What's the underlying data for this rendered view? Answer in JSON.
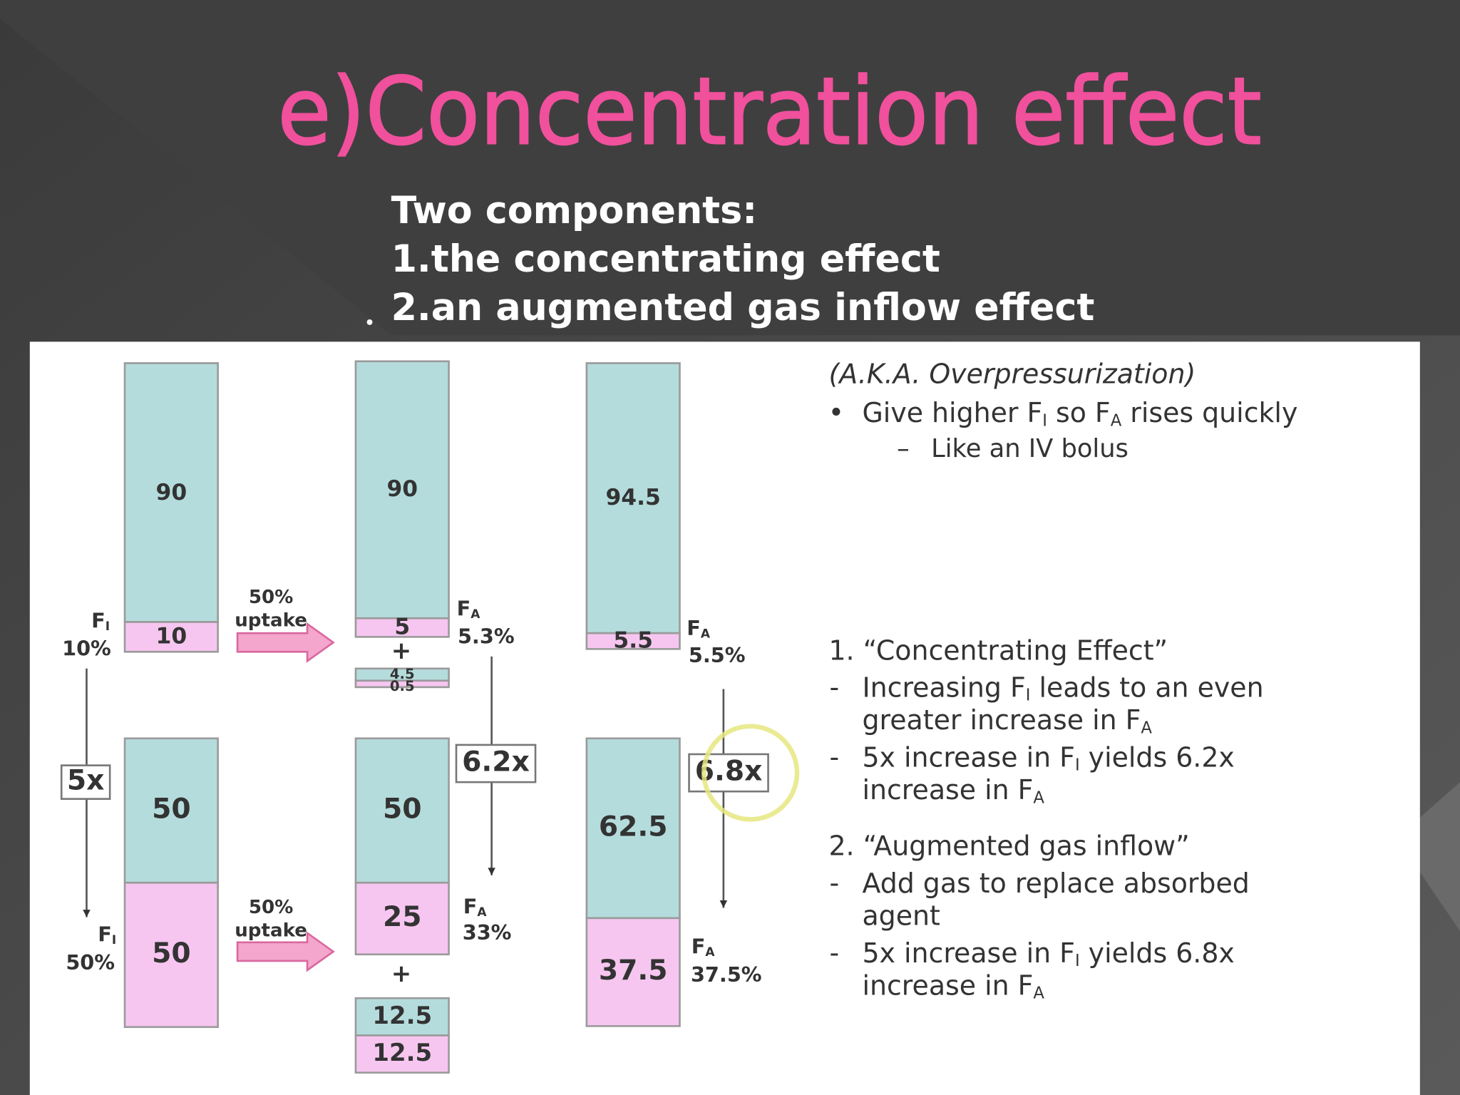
{
  "title": "e)Concentration effect",
  "intro": [
    "Two components:",
    "1.the concentrating effect",
    "2.an augmented gas inflow effect"
  ],
  "diagram": {
    "blocks": [
      {
        "teal": 90,
        "pink": 10
      },
      {
        "teal": 90,
        "pink": 5
      },
      {
        "teal": 4.5,
        "pink": 0.5
      },
      {
        "teal": 94.5,
        "pink": 5.5
      },
      {
        "teal": 50,
        "pink": 50
      },
      {
        "teal": 50,
        "pink": 25
      },
      {
        "teal": 12.5,
        "pink": 12.5
      },
      {
        "teal": 62.5,
        "pink": 37.5
      }
    ],
    "fractions": [
      {
        "symbol": "F",
        "sub": "I",
        "percent": "10%"
      },
      {
        "symbol": "F",
        "sub": "A",
        "percent": "5.3%"
      },
      {
        "symbol": "F",
        "sub": "A",
        "percent": "5.5%"
      },
      {
        "symbol": "F",
        "sub": "I",
        "percent": "50%"
      },
      {
        "symbol": "F",
        "sub": "A",
        "percent": "33%"
      },
      {
        "symbol": "F",
        "sub": "A",
        "percent": "37.5%"
      }
    ],
    "uptake": [
      {
        "percent": "50%",
        "word": "uptake"
      },
      {
        "percent": "50%",
        "word": "uptake"
      }
    ],
    "plus": [
      "+",
      "+"
    ],
    "multipliers": [
      "5x",
      "6.2x",
      "6.8x"
    ]
  },
  "notes": [
    {
      "segments": [
        {
          "text": "(A.K.A. Overpressurization)"
        }
      ]
    },
    {
      "marker": "•",
      "segments": [
        {
          "text": "Give higher F"
        },
        {
          "sub": "I"
        },
        {
          "text": " so F"
        },
        {
          "sub": "A"
        },
        {
          "text": " rises quickly"
        }
      ]
    },
    {
      "marker": "–",
      "segments": [
        {
          "text": "Like an IV bolus"
        }
      ]
    },
    {
      "segments": [
        {
          "text": "1. “Concentrating Effect”"
        }
      ]
    },
    {
      "marker": "-",
      "segments": [
        {
          "text": "Increasing F"
        },
        {
          "sub": "I"
        },
        {
          "text": " leads to an even"
        }
      ]
    },
    {
      "segments": [
        {
          "text": "greater increase in F"
        },
        {
          "sub": "A"
        }
      ]
    },
    {
      "marker": "-",
      "segments": [
        {
          "text": "5x increase in F"
        },
        {
          "sub": "I"
        },
        {
          "text": " yields 6.2x"
        }
      ]
    },
    {
      "segments": [
        {
          "text": "increase in F"
        },
        {
          "sub": "A"
        }
      ]
    },
    {
      "segments": [
        {
          "text": "2. “Augmented gas inflow”"
        }
      ]
    },
    {
      "marker": "-",
      "segments": [
        {
          "text": "Add gas to replace absorbed"
        }
      ]
    },
    {
      "segments": [
        {
          "text": "agent"
        }
      ]
    },
    {
      "marker": "-",
      "segments": [
        {
          "text": "5x increase in F"
        },
        {
          "sub": "I"
        },
        {
          "text": " yields 6.8x"
        }
      ]
    },
    {
      "segments": [
        {
          "text": "increase in F"
        },
        {
          "sub": "A"
        }
      ]
    }
  ]
}
